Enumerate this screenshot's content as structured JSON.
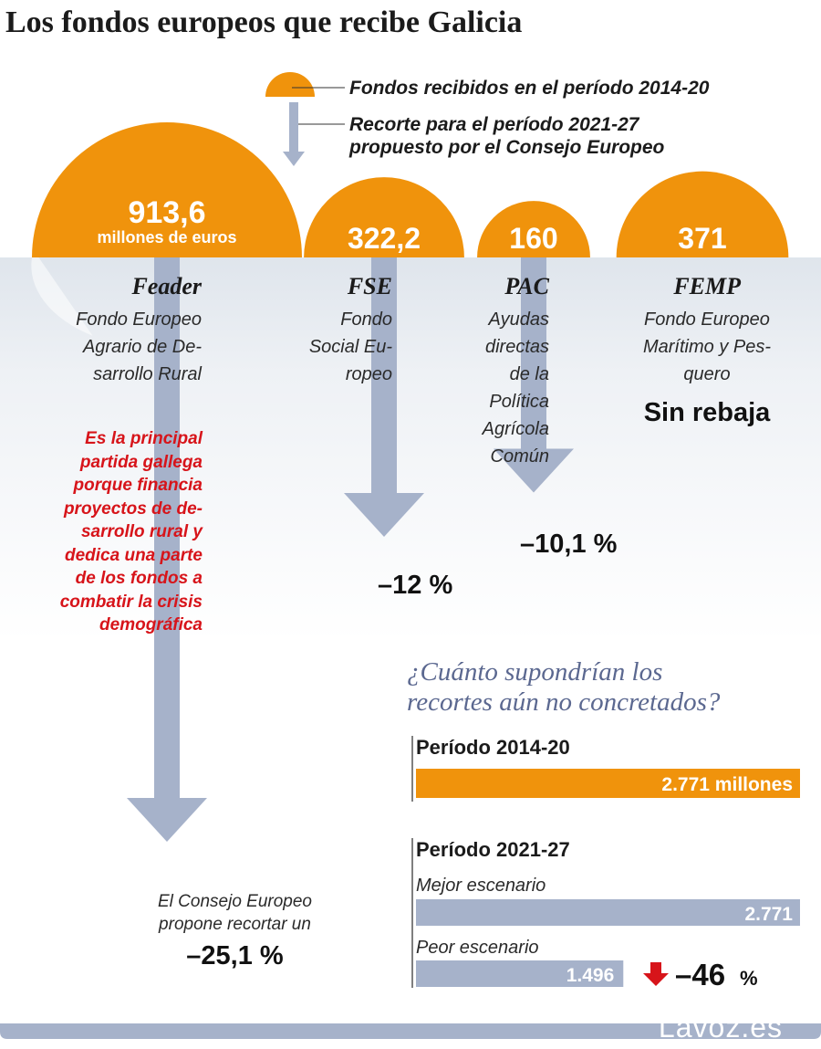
{
  "title": "Los fondos europeos que recibe Galicia",
  "legend": {
    "received": "Fondos recibidos en el período 2014-20",
    "cut_line1": "Recorte para el período 2021-27",
    "cut_line2": "propuesto por el Consejo Europeo"
  },
  "colors": {
    "orange": "#f0930c",
    "arrow": "#a6b2ca",
    "red": "#d7141a",
    "title_blue": "#5b6890"
  },
  "chart_data": [
    {
      "type": "bar",
      "unit": "millones de euros",
      "funds": [
        {
          "code": "Feader",
          "desc_lines": [
            "Fondo Europeo",
            "Agrario de De-",
            "sarrollo Rural"
          ],
          "value": 913.6,
          "value_label": "913,6",
          "cut_pct": -25.1,
          "cut_label": "–25,1 %"
        },
        {
          "code": "FSE",
          "desc_lines": [
            "Fondo",
            "Social Eu-",
            "ropeo"
          ],
          "value": 322.2,
          "value_label": "322,2",
          "cut_pct": -12,
          "cut_label": "–12 %"
        },
        {
          "code": "PAC",
          "desc_lines": [
            "Ayudas",
            "directas",
            "de la",
            "Política",
            "Agrícola",
            "Común"
          ],
          "value": 160,
          "value_label": "160",
          "cut_pct": -10.1,
          "cut_label": "–10,1 %"
        },
        {
          "code": "FEMP",
          "desc_lines": [
            "Fondo Europeo",
            "Marítimo y Pes-",
            "quero"
          ],
          "value": 371,
          "value_label": "371",
          "cut_pct": 0,
          "cut_label": "Sin rebaja"
        }
      ]
    },
    {
      "type": "bar",
      "title_line1": "¿Cuánto supondrían los",
      "title_line2": "recortes aún no concretados?",
      "periods": [
        {
          "label": "Período 2014-20",
          "bars": [
            {
              "scenario": "",
              "value": 2771,
              "value_label": "2.771 millones"
            }
          ]
        },
        {
          "label": "Período 2021-27",
          "bars": [
            {
              "scenario": "Mejor escenario",
              "value": 2771,
              "value_label": "2.771"
            },
            {
              "scenario": "Peor escenario",
              "value": 1496,
              "value_label": "1.496"
            }
          ]
        }
      ],
      "change_value": "–46",
      "change_unit": "%"
    }
  ],
  "feader_note": [
    "Es la principal",
    "partida gallega",
    "porque financia",
    "proyectos de de-",
    "sarrollo rural y",
    "dedica una parte",
    "de los fondos a",
    "combatir la crisis",
    "demográfica"
  ],
  "consejo_note": [
    "El Consejo Europeo",
    "propone recortar un"
  ],
  "brand": "Lavoz.es"
}
